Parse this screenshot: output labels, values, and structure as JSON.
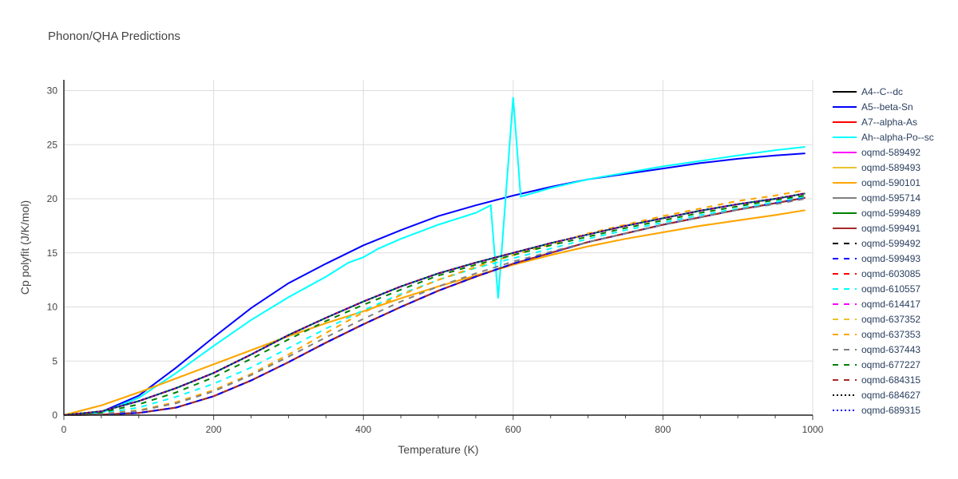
{
  "chart_data": {
    "type": "line",
    "title": "Phonon/QHA Predictions",
    "xlabel": "Temperature (K)",
    "ylabel": "Cp polyfit (J/K/mol)",
    "xlim": [
      0,
      1000
    ],
    "ylim": [
      0,
      31
    ],
    "xticks": [
      0,
      200,
      400,
      600,
      800,
      1000
    ],
    "yticks": [
      0,
      5,
      10,
      15,
      20,
      25,
      30
    ],
    "grid": true,
    "legend_position": "right",
    "x": [
      0,
      50,
      100,
      150,
      200,
      250,
      300,
      350,
      400,
      450,
      500,
      550,
      600,
      650,
      700,
      750,
      800,
      850,
      900,
      950,
      990
    ],
    "series": [
      {
        "name": "A4--C--dc",
        "color": "#000000",
        "dash": "solid",
        "values": [
          0,
          0.05,
          0.2,
          0.7,
          1.75,
          3.2,
          4.9,
          6.7,
          8.4,
          10.0,
          11.5,
          12.8,
          14.0,
          15.0,
          16.0,
          16.8,
          17.6,
          18.3,
          19.0,
          19.6,
          20.1
        ]
      },
      {
        "name": "A5--beta-Sn",
        "color": "#0000ff",
        "dash": "solid",
        "values": [
          0,
          0.3,
          1.8,
          4.4,
          7.2,
          9.9,
          12.2,
          14.0,
          15.7,
          17.1,
          18.4,
          19.4,
          20.3,
          21.1,
          21.8,
          22.3,
          22.8,
          23.3,
          23.7,
          24.0,
          24.2
        ]
      },
      {
        "name": "A7--alpha-As",
        "color": "#ff0000",
        "dash": "solid",
        "values": [
          0,
          0.05,
          0.2,
          0.7,
          1.75,
          3.2,
          4.9,
          6.7,
          8.4,
          10.0,
          11.5,
          12.8,
          14.0,
          15.0,
          16.0,
          16.8,
          17.6,
          18.3,
          19.0,
          19.6,
          20.1
        ]
      },
      {
        "name": "Ah--alpha-Po--sc",
        "color": "#00ffff",
        "dash": "solid",
        "x": [
          0,
          50,
          100,
          150,
          200,
          250,
          300,
          350,
          380,
          400,
          420,
          450,
          500,
          550,
          570,
          580,
          600,
          610,
          650,
          700,
          750,
          800,
          850,
          900,
          950,
          990
        ],
        "values": [
          0,
          0.2,
          1.6,
          3.9,
          6.4,
          8.8,
          10.9,
          12.8,
          14.1,
          14.6,
          15.4,
          16.3,
          17.6,
          18.7,
          19.4,
          10.8,
          29.4,
          20.2,
          21.0,
          21.8,
          22.4,
          23.0,
          23.5,
          24.0,
          24.5,
          24.8
        ]
      },
      {
        "name": "oqmd-589492",
        "color": "#ff00ff",
        "dash": "solid",
        "values": [
          0,
          0.35,
          1.3,
          2.5,
          3.9,
          5.6,
          7.4,
          9.0,
          10.5,
          11.9,
          13.1,
          14.1,
          15.0,
          15.9,
          16.7,
          17.5,
          18.2,
          18.9,
          19.5,
          20.0,
          20.5
        ]
      },
      {
        "name": "oqmd-589493",
        "color": "#ebc230",
        "dash": "solid",
        "values": [
          0,
          0.9,
          2.1,
          3.4,
          4.7,
          6.0,
          7.3,
          8.5,
          9.6,
          10.8,
          11.9,
          12.9,
          13.9,
          14.8,
          15.6,
          16.3,
          16.9,
          17.5,
          18.0,
          18.5,
          18.95
        ]
      },
      {
        "name": "oqmd-590101",
        "color": "#ffa500",
        "dash": "solid",
        "values": [
          0,
          0.9,
          2.1,
          3.4,
          4.7,
          6.0,
          7.3,
          8.5,
          9.6,
          10.8,
          11.9,
          12.9,
          13.9,
          14.8,
          15.6,
          16.3,
          16.9,
          17.5,
          18.0,
          18.5,
          18.95
        ]
      },
      {
        "name": "oqmd-595714",
        "color": "#808080",
        "dash": "solid",
        "values": [
          0,
          0.05,
          0.2,
          0.7,
          1.75,
          3.2,
          4.9,
          6.7,
          8.4,
          10.0,
          11.5,
          12.8,
          14.0,
          15.0,
          16.0,
          16.8,
          17.6,
          18.3,
          19.0,
          19.6,
          20.1
        ]
      },
      {
        "name": "oqmd-599489",
        "color": "#008000",
        "dash": "solid",
        "values": [
          0,
          0.35,
          1.3,
          2.5,
          3.9,
          5.6,
          7.4,
          9.0,
          10.5,
          11.9,
          13.1,
          14.1,
          15.0,
          15.9,
          16.7,
          17.5,
          18.2,
          18.9,
          19.5,
          20.0,
          20.5
        ]
      },
      {
        "name": "oqmd-599491",
        "color": "#a52a2a",
        "dash": "solid",
        "values": [
          0,
          0.05,
          0.2,
          0.7,
          1.75,
          3.2,
          4.9,
          6.7,
          8.4,
          10.0,
          11.5,
          12.8,
          14.0,
          15.0,
          16.0,
          16.8,
          17.6,
          18.3,
          19.0,
          19.6,
          20.1
        ]
      },
      {
        "name": "oqmd-599492",
        "color": "#000000",
        "dash": "dash",
        "values": [
          0,
          0.35,
          1.3,
          2.5,
          3.9,
          5.6,
          7.4,
          9.0,
          10.5,
          11.9,
          13.1,
          14.1,
          15.0,
          15.9,
          16.7,
          17.5,
          18.2,
          18.9,
          19.5,
          20.0,
          20.5
        ]
      },
      {
        "name": "oqmd-599493",
        "color": "#0000ff",
        "dash": "dash",
        "values": [
          0,
          0.05,
          0.2,
          0.7,
          1.75,
          3.2,
          4.9,
          6.7,
          8.4,
          10.0,
          11.5,
          12.8,
          14.0,
          15.0,
          16.0,
          16.8,
          17.6,
          18.3,
          19.0,
          19.6,
          20.1
        ]
      },
      {
        "name": "oqmd-603085",
        "color": "#ff0000",
        "dash": "dash",
        "values": [
          0,
          0.35,
          1.3,
          2.5,
          3.9,
          5.6,
          7.4,
          9.0,
          10.5,
          11.9,
          13.1,
          14.1,
          15.0,
          15.9,
          16.7,
          17.5,
          18.2,
          18.9,
          19.5,
          20.0,
          20.5
        ]
      },
      {
        "name": "oqmd-610557",
        "color": "#00ffff",
        "dash": "dash",
        "values": [
          0,
          0.15,
          0.7,
          1.7,
          2.9,
          4.4,
          6.2,
          8.0,
          9.7,
          11.2,
          12.5,
          13.6,
          14.5,
          15.4,
          16.3,
          17.1,
          17.8,
          18.5,
          19.1,
          19.7,
          20.2
        ]
      },
      {
        "name": "oqmd-614417",
        "color": "#ff00ff",
        "dash": "dash",
        "values": [
          0,
          0.35,
          1.3,
          2.5,
          3.9,
          5.6,
          7.4,
          9.0,
          10.5,
          11.9,
          13.1,
          14.1,
          15.0,
          15.9,
          16.7,
          17.5,
          18.2,
          18.9,
          19.5,
          20.0,
          20.5
        ]
      },
      {
        "name": "oqmd-637352",
        "color": "#ebc230",
        "dash": "dash",
        "values": [
          0,
          0.1,
          0.45,
          1.2,
          2.3,
          3.8,
          5.6,
          7.6,
          9.5,
          11.1,
          12.5,
          13.7,
          14.8,
          15.8,
          16.8,
          17.6,
          18.4,
          19.1,
          19.8,
          20.3,
          20.8
        ]
      },
      {
        "name": "oqmd-637353",
        "color": "#ffa500",
        "dash": "dash",
        "values": [
          0,
          0.1,
          0.45,
          1.2,
          2.3,
          3.8,
          5.6,
          7.6,
          9.5,
          11.1,
          12.5,
          13.7,
          14.8,
          15.8,
          16.8,
          17.6,
          18.4,
          19.1,
          19.8,
          20.3,
          20.8
        ]
      },
      {
        "name": "oqmd-637443",
        "color": "#808080",
        "dash": "dash",
        "values": [
          0,
          0.1,
          0.4,
          1.1,
          2.2,
          3.7,
          5.4,
          7.2,
          8.9,
          10.5,
          11.9,
          13.1,
          14.2,
          15.1,
          16.0,
          16.8,
          17.6,
          18.3,
          19.0,
          19.5,
          20.0
        ]
      },
      {
        "name": "oqmd-677227",
        "color": "#008000",
        "dash": "dash",
        "values": [
          0,
          0.25,
          1.0,
          2.1,
          3.5,
          5.2,
          7.0,
          8.7,
          10.2,
          11.6,
          12.9,
          13.9,
          14.8,
          15.7,
          16.5,
          17.3,
          18.0,
          18.7,
          19.3,
          19.9,
          20.3
        ]
      },
      {
        "name": "oqmd-684315",
        "color": "#a52a2a",
        "dash": "dash",
        "values": [
          0,
          0.35,
          1.3,
          2.5,
          3.9,
          5.6,
          7.4,
          9.0,
          10.5,
          11.9,
          13.1,
          14.1,
          15.0,
          15.9,
          16.7,
          17.5,
          18.2,
          18.9,
          19.5,
          20.0,
          20.5
        ]
      },
      {
        "name": "oqmd-684627",
        "color": "#000000",
        "dash": "dot",
        "values": [
          0,
          0.35,
          1.3,
          2.5,
          3.9,
          5.6,
          7.4,
          9.0,
          10.5,
          11.9,
          13.1,
          14.1,
          15.0,
          15.9,
          16.7,
          17.5,
          18.2,
          18.9,
          19.5,
          20.0,
          20.5
        ]
      },
      {
        "name": "oqmd-689315",
        "color": "#0000ff",
        "dash": "dot",
        "values": [
          0,
          0.35,
          1.3,
          2.5,
          3.9,
          5.6,
          7.4,
          9.0,
          10.5,
          11.9,
          13.1,
          14.1,
          15.0,
          15.9,
          16.7,
          17.5,
          18.2,
          18.9,
          19.5,
          20.0,
          20.5
        ]
      }
    ]
  }
}
